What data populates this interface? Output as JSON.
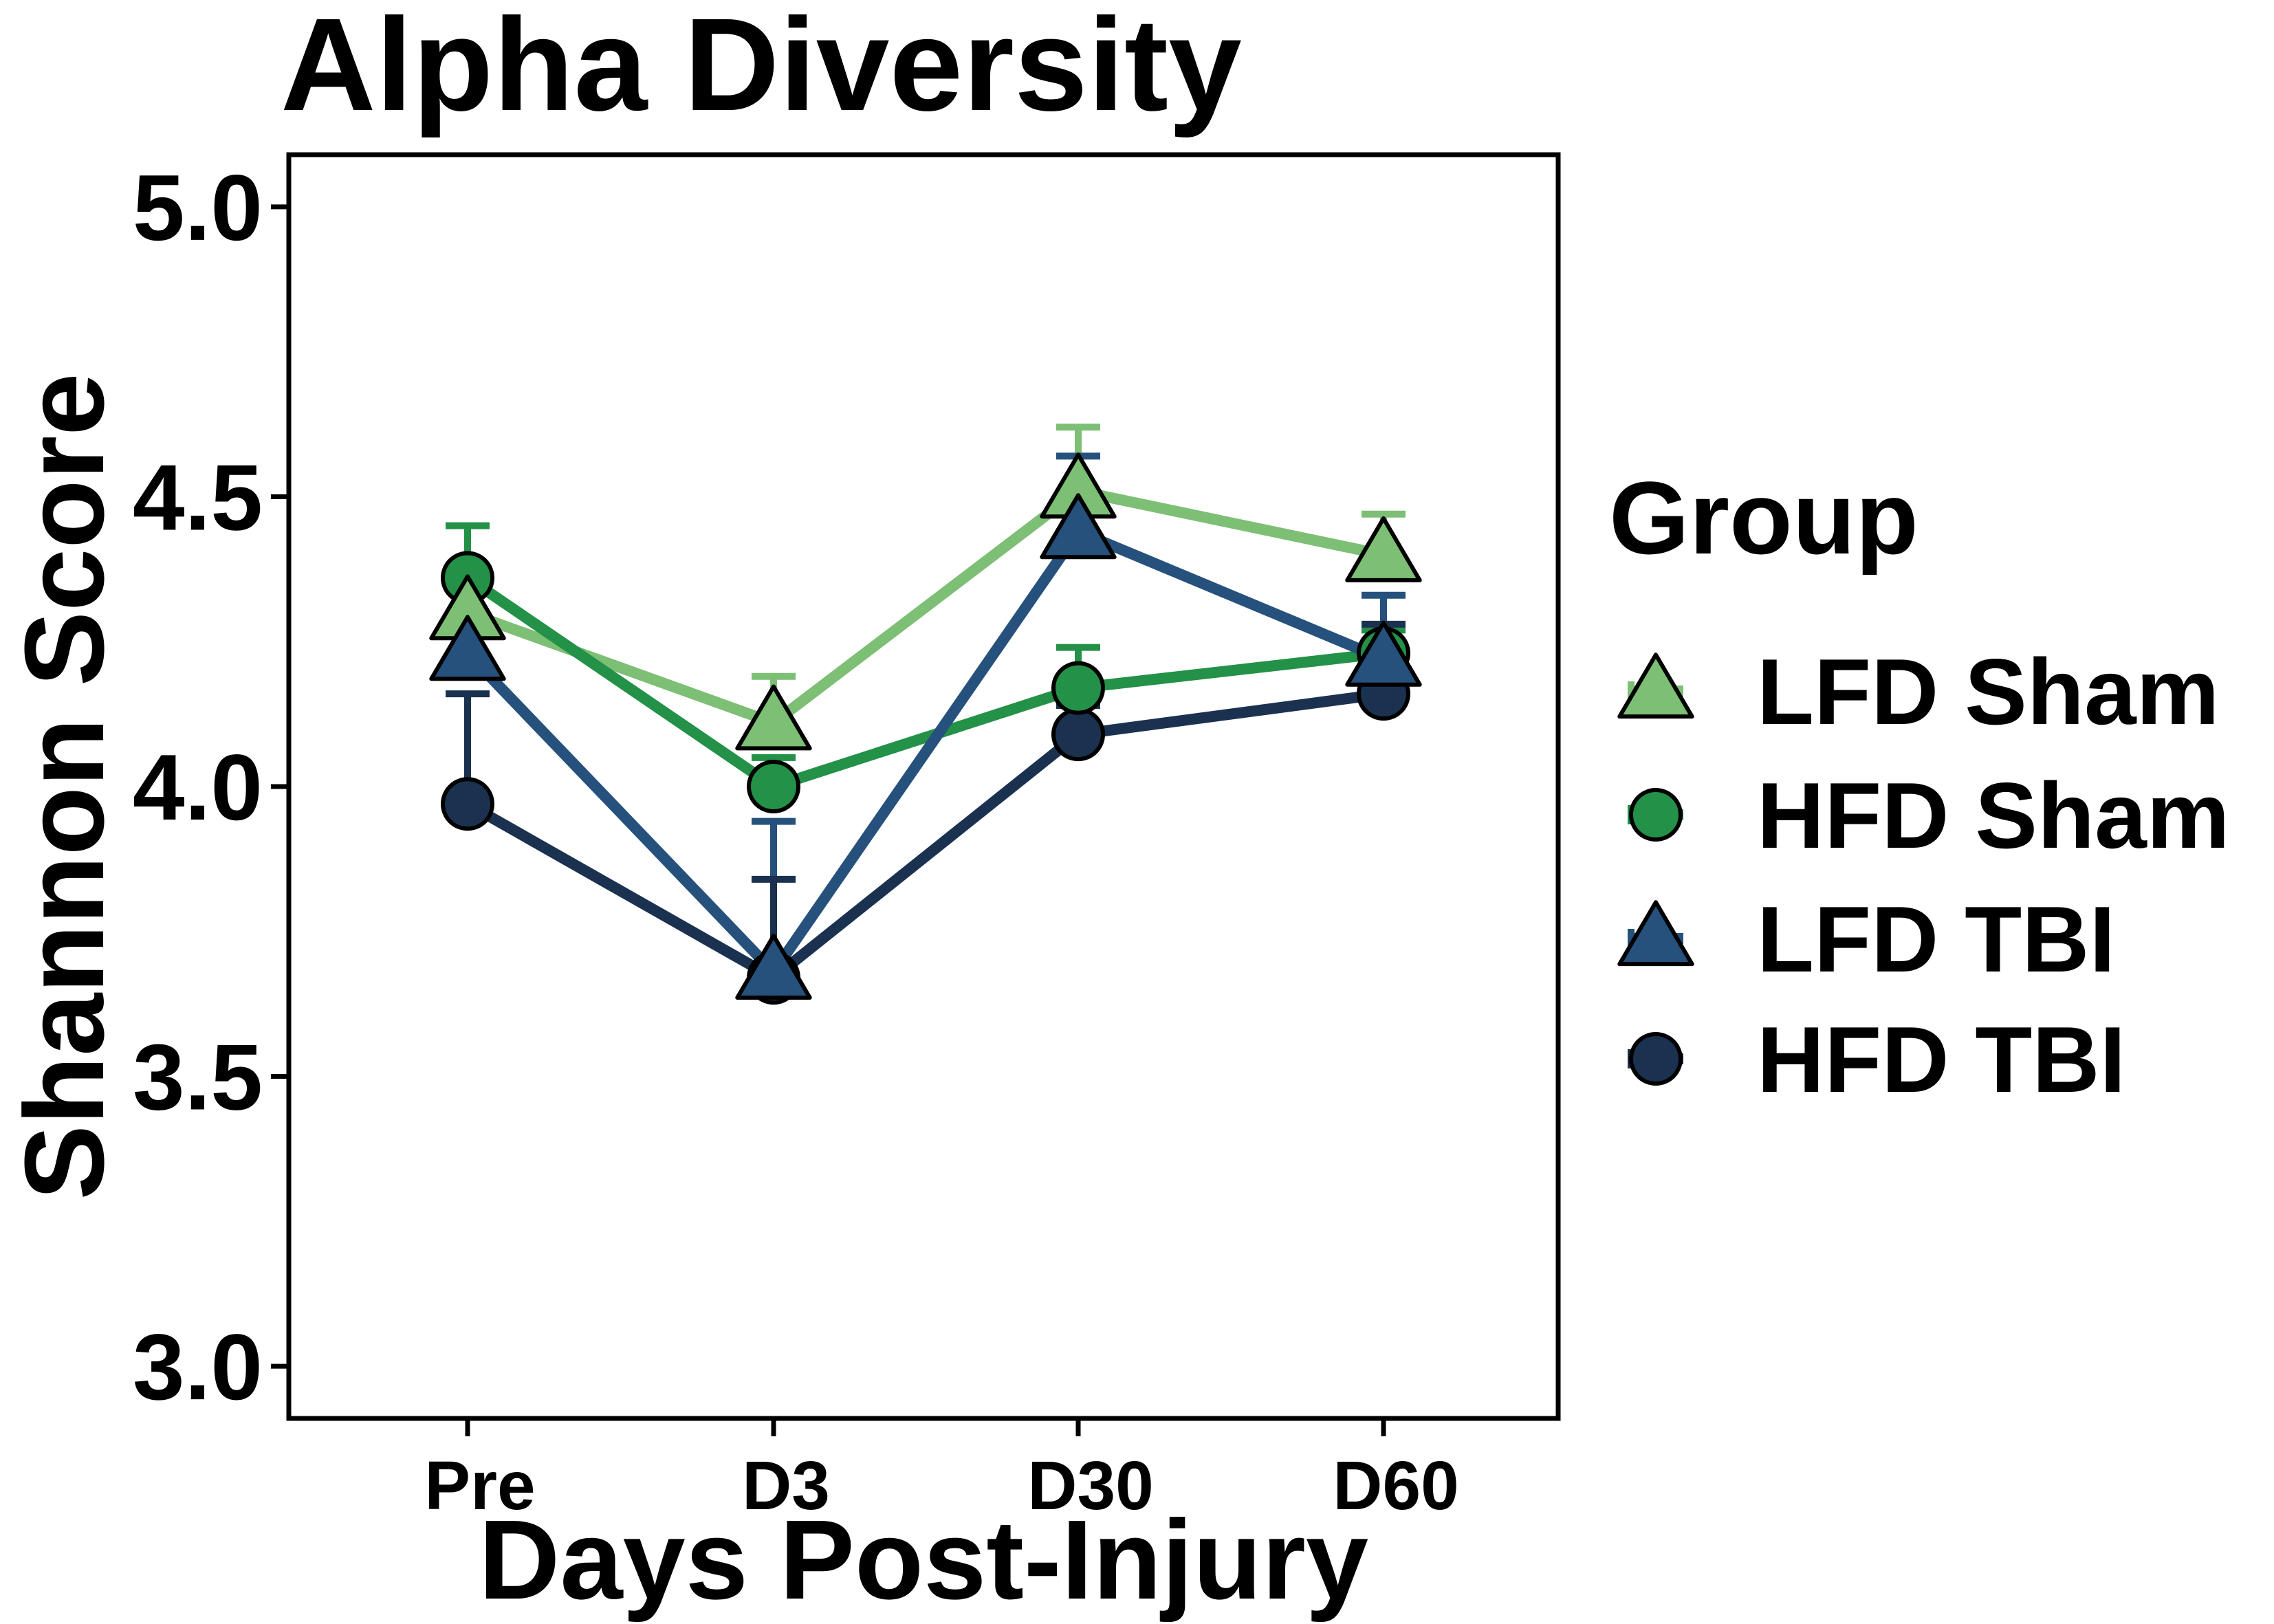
{
  "chart_data": {
    "type": "line",
    "title": "Alpha Diversity",
    "xlabel": "Days Post-Injury",
    "ylabel": "Shannon Score",
    "categories": [
      "Pre",
      "D3",
      "D30",
      "D60"
    ],
    "ylim": [
      2.91,
      5.09
    ],
    "yticks": [
      3.0,
      3.5,
      4.0,
      4.5,
      5.0
    ],
    "ytick_labels": [
      "3.0",
      "3.5",
      "4.0",
      "4.5",
      "5.0"
    ],
    "grid": false,
    "legend": {
      "title": "Group",
      "placement": "right"
    },
    "series": [
      {
        "name": "LFD Sham",
        "marker": "triangle",
        "color": "#7dbf75",
        "values": [
          4.3,
          4.11,
          4.51,
          4.4
        ],
        "err_upper": [
          4.38,
          4.19,
          4.62,
          4.47
        ]
      },
      {
        "name": "HFD Sham",
        "marker": "circle",
        "color": "#239147",
        "values": [
          4.36,
          4.0,
          4.17,
          4.23
        ],
        "err_upper": [
          4.45,
          4.05,
          4.24,
          4.27
        ]
      },
      {
        "name": "LFD TBI",
        "marker": "triangle",
        "color": "#26517c",
        "values": [
          4.23,
          3.68,
          4.44,
          4.22
        ],
        "err_upper": [
          4.34,
          3.94,
          4.57,
          4.33
        ]
      },
      {
        "name": "HFD TBI",
        "marker": "circle",
        "color": "#1b3150",
        "values": [
          3.97,
          3.67,
          4.09,
          4.16
        ],
        "err_upper": [
          4.16,
          3.84,
          4.14,
          4.28
        ]
      }
    ]
  }
}
